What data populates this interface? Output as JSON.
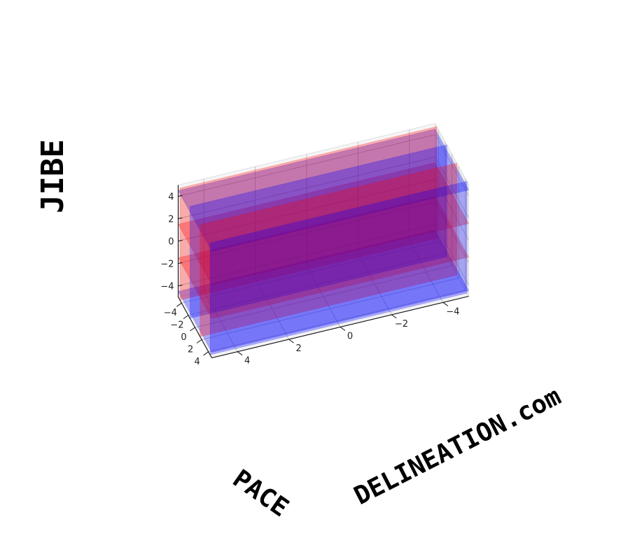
{
  "chart_data": {
    "type": "3d-planes",
    "xlabel": "DELINEATION.com",
    "ylabel": "PACE",
    "zlabel": "JIBE",
    "xlim": [
      -5,
      5
    ],
    "ylim": [
      -5,
      5
    ],
    "zlim": [
      -5,
      5
    ],
    "ticks": [
      -4,
      -2,
      0,
      2,
      4
    ],
    "tick_labels": [
      "−4",
      "−2",
      "0",
      "2",
      "4"
    ],
    "grid": true,
    "planes": [
      {
        "color": "#0000ff",
        "orientation": "horizontal",
        "level": -4.5
      },
      {
        "color": "#ff0000",
        "orientation": "horizontal",
        "level": -1.5
      },
      {
        "color": "#ff0000",
        "orientation": "horizontal",
        "level": 1.5
      },
      {
        "color": "#0000ff",
        "orientation": "horizontal",
        "level": 4.5
      },
      {
        "color": "#ff0000",
        "orientation": "vertical-x",
        "level": -4.5
      },
      {
        "color": "#0000ff",
        "orientation": "vertical-x",
        "level": -1.5
      },
      {
        "color": "#ff0000",
        "orientation": "vertical-x",
        "level": 1.5
      },
      {
        "color": "#0000ff",
        "orientation": "vertical-x",
        "level": 4.5
      }
    ],
    "colors": {
      "red": "#ff0000",
      "blue": "#0000ff"
    }
  }
}
